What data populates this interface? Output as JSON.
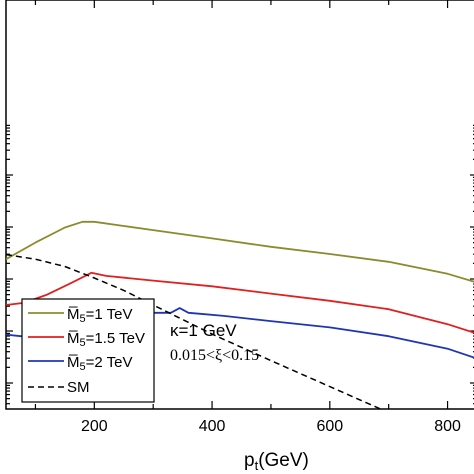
{
  "chart_data": {
    "type": "line",
    "title": "",
    "xlabel": "p",
    "xlabel_sub": "t",
    "xlabel_unit": "(GeV)",
    "ylabel": "",
    "xlim": [
      50,
      850
    ],
    "y_scale": "log",
    "ylim_decades": [
      0,
      8
    ],
    "grid": false,
    "legend_position": "bottom-left",
    "x_ticks": [
      200,
      400,
      600,
      800
    ],
    "x_tick_labels": [
      "200",
      "400",
      "600",
      "800"
    ],
    "series": [
      {
        "name": "M̅",
        "name_sub": "5",
        "name_rest": "=1 TeV",
        "color": "#8b8b2e",
        "dash": "solid",
        "x": [
          50,
          100,
          150,
          180,
          200,
          250,
          300,
          400,
          500,
          600,
          700,
          800,
          850
        ],
        "y_decades": [
          6.38,
          6.7,
          6.99,
          7.1,
          7.1,
          7.02,
          6.94,
          6.78,
          6.62,
          6.48,
          6.33,
          6.1,
          5.93
        ]
      },
      {
        "name": "M̅",
        "name_sub": "5",
        "name_rest": "=1.5 TeV",
        "color": "#e02020",
        "dash": "solid",
        "x": [
          50,
          80,
          120,
          160,
          195,
          220,
          300,
          400,
          500,
          600,
          700,
          800,
          850
        ],
        "y_decades": [
          5.5,
          5.54,
          5.7,
          5.92,
          6.12,
          6.06,
          5.97,
          5.86,
          5.72,
          5.58,
          5.42,
          5.13,
          4.95
        ]
      },
      {
        "name": "M̅",
        "name_sub": "5",
        "name_rest": "=2 TeV",
        "color": "#1f36b4",
        "dash": "solid",
        "x": [
          50,
          75,
          100,
          130,
          160,
          190,
          220,
          260,
          300,
          330,
          345,
          360,
          380,
          420,
          500,
          600,
          700,
          800,
          850
        ],
        "y_decades": [
          4.93,
          4.9,
          4.93,
          5.1,
          5.32,
          5.42,
          5.42,
          5.38,
          5.35,
          5.35,
          5.44,
          5.35,
          5.33,
          5.29,
          5.19,
          5.07,
          4.9,
          4.66,
          4.47
        ]
      },
      {
        "name": "SM",
        "color": "#000000",
        "dash": "dashed",
        "x": [
          50,
          100,
          150,
          200,
          250,
          300,
          400,
          500,
          600,
          700,
          800,
          850
        ],
        "y_decades": [
          6.47,
          6.38,
          6.24,
          6.02,
          5.78,
          5.5,
          4.94,
          4.43,
          3.93,
          3.43,
          2.9,
          2.6
        ]
      }
    ],
    "annotations": [
      {
        "text": "κ=1 GeV",
        "style": "sans"
      },
      {
        "text": "0.015<ξ<0.15",
        "style": "serif"
      }
    ]
  }
}
